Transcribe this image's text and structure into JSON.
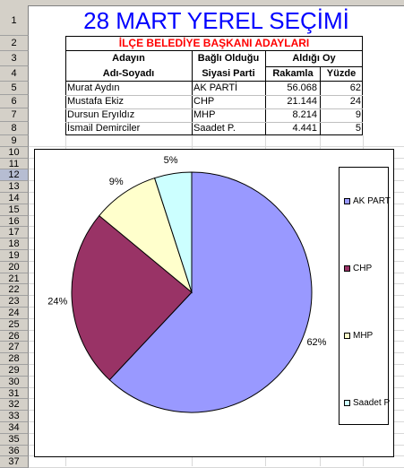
{
  "title": "28 MART YEREL SEÇİMİ",
  "table": {
    "header_title": "İLÇE BELEDİYE BAŞKANI ADAYLARI",
    "col1_line1": "Adayın",
    "col1_line2": "Adı-Soyadı",
    "col2_line1": "Bağlı Olduğu",
    "col2_line2": "Siyasi Parti",
    "col3_group": "Aldığı Oy",
    "col3_sub1": "Rakamla",
    "col3_sub2": "Yüzde",
    "rows": [
      {
        "name": "Murat Aydın",
        "party": "AK PARTİ",
        "votes": "56.068",
        "pct": "62"
      },
      {
        "name": "Mustafa Ekiz",
        "party": "CHP",
        "votes": "21.144",
        "pct": "24"
      },
      {
        "name": "Dursun Eryıldız",
        "party": "MHP",
        "votes": "8.214",
        "pct": "9"
      },
      {
        "name": "İsmail Demirciler",
        "party": "Saadet P.",
        "votes": "4.441",
        "pct": "5"
      }
    ]
  },
  "row_numbers": [
    "1",
    "2",
    "3",
    "4",
    "5",
    "6",
    "7",
    "8",
    "9",
    "10",
    "11",
    "12",
    "13",
    "14",
    "15",
    "16",
    "17",
    "18",
    "19",
    "20",
    "21",
    "22",
    "23",
    "24",
    "25",
    "26",
    "27",
    "28",
    "29",
    "30",
    "31",
    "32",
    "33",
    "34",
    "35",
    "36",
    "37"
  ],
  "selected_row": "12",
  "chart_data": {
    "type": "pie",
    "categories": [
      "AK PART",
      "CHP",
      "MHP",
      "Saadet P"
    ],
    "values": [
      62,
      24,
      9,
      5
    ],
    "labels": [
      "62%",
      "24%",
      "9%",
      "5%"
    ],
    "colors": [
      "#9999ff",
      "#993366",
      "#ffffcc",
      "#ccffff"
    ],
    "legend_position": "right"
  }
}
